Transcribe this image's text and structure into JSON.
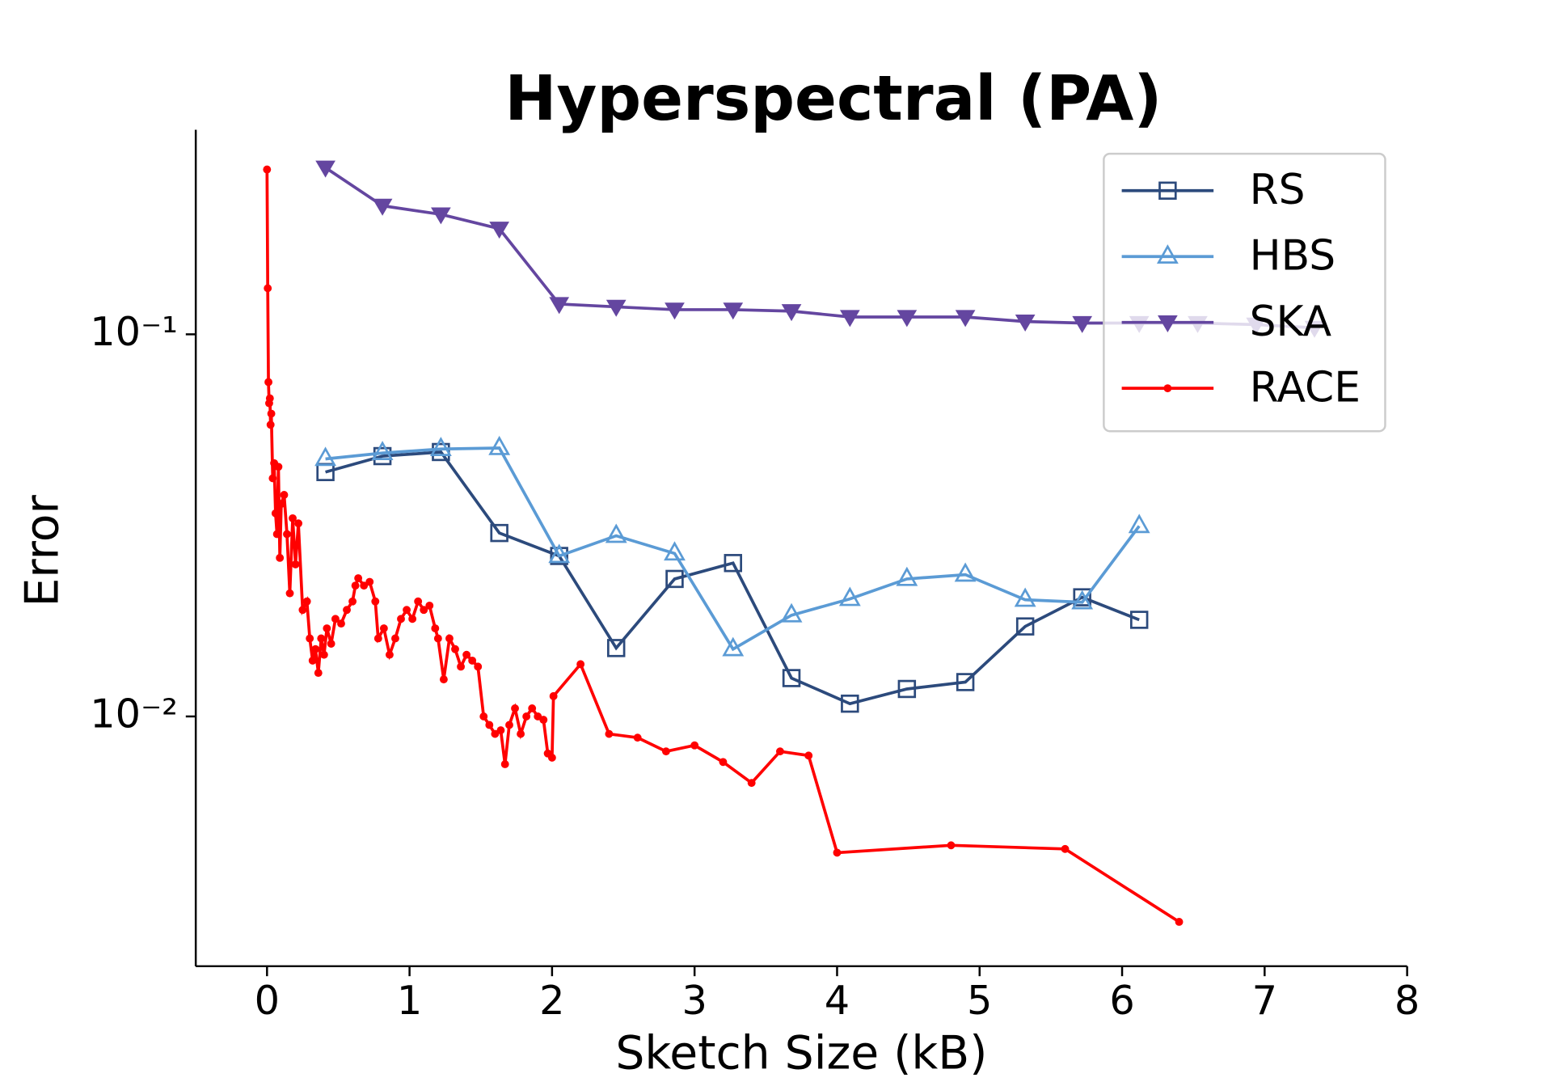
{
  "chart_data": {
    "type": "line",
    "title": "Hyperspectral (PA)",
    "x_label": "Sketch Size (kB)",
    "y_label": "Error",
    "log_y": true,
    "legend": "upper right",
    "xlim": [
      -0.5,
      8
    ],
    "xticks": [
      0,
      1,
      2,
      3,
      4,
      5,
      6,
      7,
      8
    ],
    "ylim": [
      0.00222,
      0.343
    ],
    "yticks": [
      {
        "value": 0.1,
        "label": "10⁻¹"
      },
      {
        "value": 0.01,
        "label": "10⁻²"
      }
    ],
    "series": [
      {
        "name": "RS",
        "color": "#2c4a7c",
        "marker": "square",
        "x": [
          0.41,
          0.81,
          1.22,
          1.63,
          2.05,
          2.45,
          2.86,
          3.27,
          3.68,
          4.09,
          4.49,
          4.9,
          5.32,
          5.72,
          6.12
        ],
        "values": [
          0.0436,
          0.048,
          0.0492,
          0.0302,
          0.0263,
          0.0151,
          0.0229,
          0.0252,
          0.0126,
          0.0108,
          0.0118,
          0.0123,
          0.0172,
          0.0205,
          0.0179
        ]
      },
      {
        "name": "HBS",
        "color": "#5b9bd5",
        "marker": "triangle",
        "x": [
          0.41,
          0.81,
          1.22,
          1.63,
          2.05,
          2.45,
          2.86,
          3.27,
          3.68,
          4.09,
          4.49,
          4.9,
          5.32,
          5.72,
          6.12
        ],
        "values": [
          0.0472,
          0.0489,
          0.0501,
          0.0504,
          0.0263,
          0.0297,
          0.0267,
          0.015,
          0.0184,
          0.0203,
          0.0229,
          0.0235,
          0.0202,
          0.0199,
          0.0315
        ]
      },
      {
        "name": "SKA",
        "color": "#6446a0",
        "marker": "triangle-down",
        "x": [
          0.41,
          0.81,
          1.22,
          1.63,
          2.05,
          2.45,
          2.86,
          3.27,
          3.68,
          4.09,
          4.49,
          4.9,
          5.32,
          5.72,
          6.12,
          6.53,
          6.94,
          7.35
        ],
        "values": [
          0.273,
          0.217,
          0.206,
          0.189,
          0.12,
          0.118,
          0.116,
          0.116,
          0.115,
          0.111,
          0.111,
          0.111,
          0.108,
          0.107,
          0.107,
          0.107,
          0.106,
          0.104
        ]
      },
      {
        "name": "RACE",
        "color": "#ff0000",
        "marker": "dot",
        "x": [
          0.0,
          0.005,
          0.01,
          0.015,
          0.02,
          0.025,
          0.03,
          0.04,
          0.05,
          0.06,
          0.07,
          0.08,
          0.09,
          0.1,
          0.12,
          0.14,
          0.16,
          0.18,
          0.2,
          0.22,
          0.25,
          0.28,
          0.3,
          0.32,
          0.34,
          0.36,
          0.38,
          0.4,
          0.42,
          0.45,
          0.48,
          0.52,
          0.56,
          0.6,
          0.62,
          0.64,
          0.68,
          0.72,
          0.76,
          0.78,
          0.82,
          0.86,
          0.9,
          0.94,
          0.98,
          1.02,
          1.06,
          1.1,
          1.14,
          1.18,
          1.2,
          1.24,
          1.28,
          1.32,
          1.36,
          1.4,
          1.44,
          1.48,
          1.52,
          1.56,
          1.6,
          1.64,
          1.67,
          1.7,
          1.74,
          1.78,
          1.82,
          1.86,
          1.9,
          1.94,
          1.97,
          2.0,
          2.01,
          2.2,
          2.4,
          2.6,
          2.8,
          3.0,
          3.2,
          3.4,
          3.6,
          3.8,
          4.0,
          4.8,
          5.6,
          6.4
        ],
        "values": [
          0.27,
          0.132,
          0.075,
          0.066,
          0.068,
          0.058,
          0.062,
          0.042,
          0.046,
          0.034,
          0.03,
          0.045,
          0.026,
          0.036,
          0.038,
          0.03,
          0.021,
          0.033,
          0.025,
          0.032,
          0.019,
          0.02,
          0.016,
          0.014,
          0.015,
          0.013,
          0.016,
          0.0145,
          0.017,
          0.0155,
          0.018,
          0.0175,
          0.019,
          0.02,
          0.022,
          0.023,
          0.022,
          0.0225,
          0.02,
          0.016,
          0.017,
          0.0145,
          0.016,
          0.018,
          0.019,
          0.018,
          0.02,
          0.019,
          0.0195,
          0.017,
          0.016,
          0.0125,
          0.016,
          0.015,
          0.0135,
          0.0145,
          0.014,
          0.0135,
          0.01,
          0.0095,
          0.009,
          0.0092,
          0.0075,
          0.0095,
          0.0105,
          0.009,
          0.01,
          0.0105,
          0.01,
          0.0098,
          0.008,
          0.0078,
          0.0113,
          0.0137,
          0.009,
          0.0088,
          0.0081,
          0.0084,
          0.0076,
          0.0067,
          0.0081,
          0.0079,
          0.0044,
          0.0046,
          0.0045,
          0.0029
        ]
      }
    ]
  }
}
